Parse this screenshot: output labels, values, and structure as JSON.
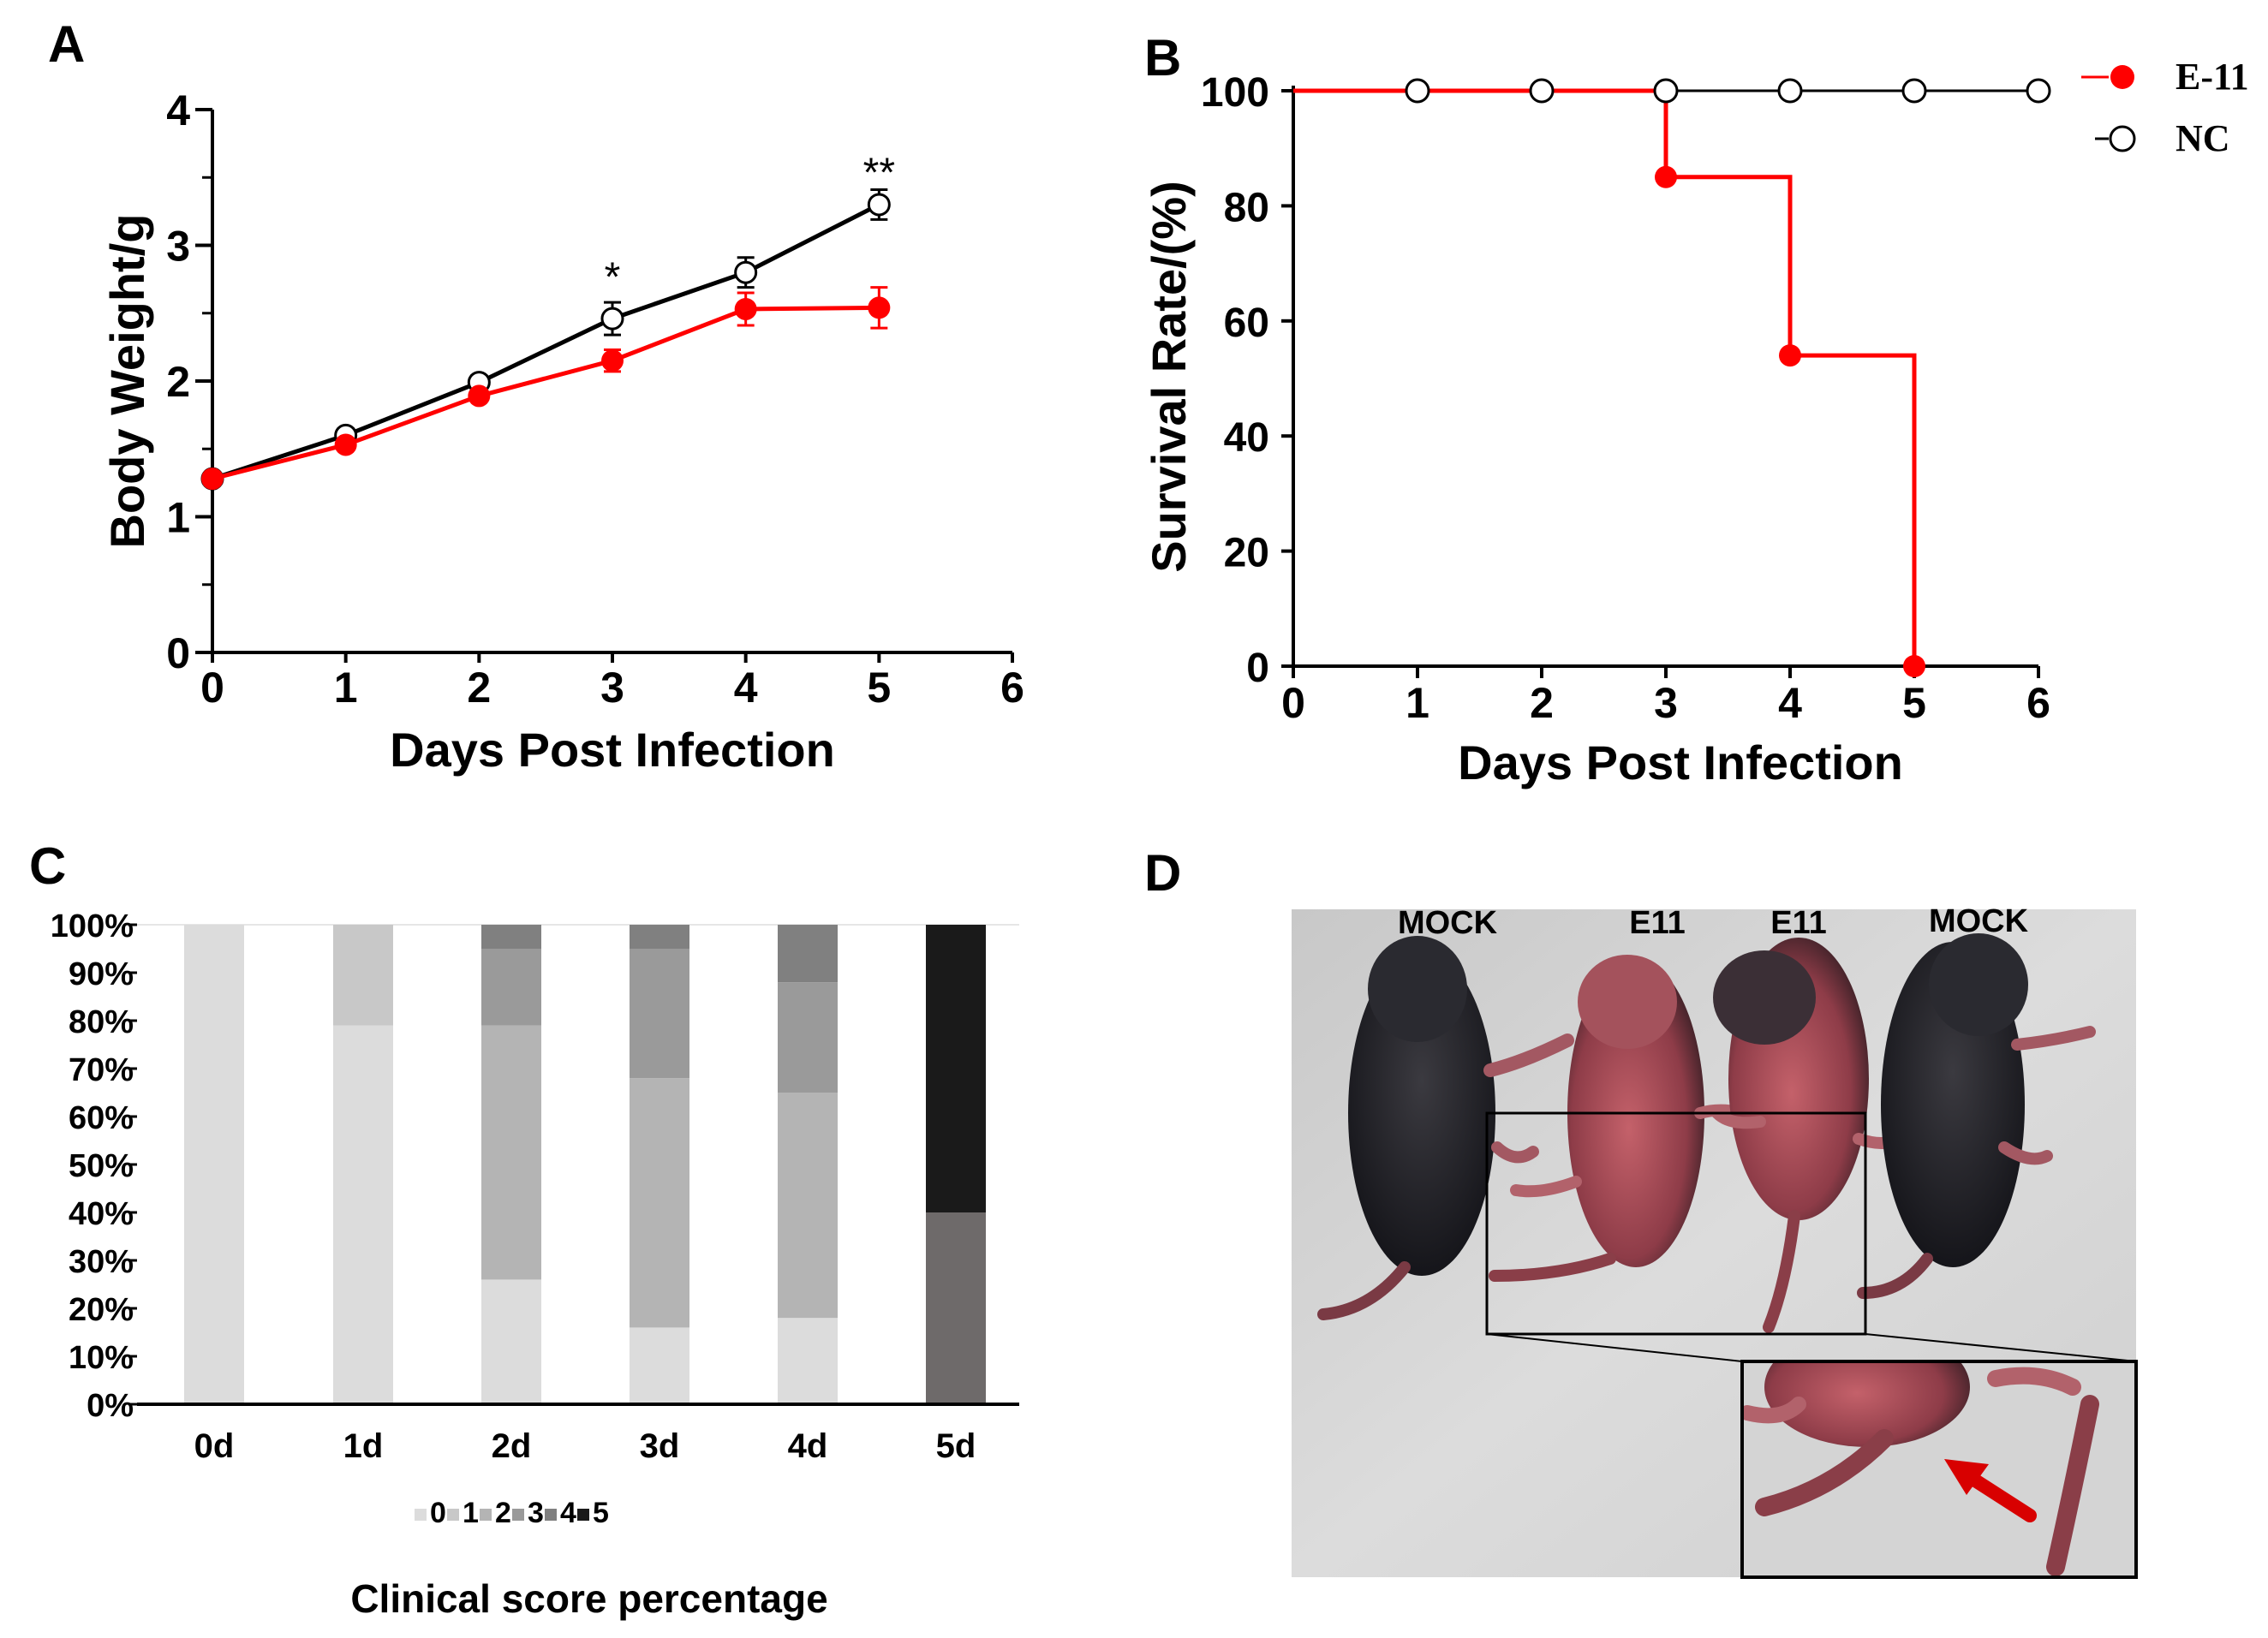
{
  "panels": {
    "A": "A",
    "B": "B",
    "C": "C",
    "D": "D"
  },
  "colors": {
    "e11": "#ff0000",
    "nc": "#000000",
    "score0": "#dcdcdc",
    "score1": "#c8c8c8",
    "score2": "#b4b4b4",
    "score3": "#9a9a9a",
    "score4": "#808080",
    "score5_dark": "#1a1a1a",
    "score4_dark": "#6e6a6a"
  },
  "chart_data": [
    {
      "id": "A",
      "type": "line",
      "title": "",
      "xlabel": "Days Post Infection",
      "ylabel": "Body Weight/g",
      "xlim": [
        0,
        6
      ],
      "ylim": [
        0,
        4
      ],
      "xticks": [
        "0",
        "1",
        "2",
        "3",
        "4",
        "5",
        "6"
      ],
      "yticks": [
        "0",
        "1",
        "2",
        "3",
        "4"
      ],
      "x": [
        0,
        1,
        2,
        3,
        4,
        5
      ],
      "series": [
        {
          "name": "NC",
          "values": [
            1.28,
            1.6,
            1.99,
            2.46,
            2.8,
            3.3
          ],
          "err": [
            0.03,
            0.05,
            0.05,
            0.12,
            0.11,
            0.11
          ],
          "marker": "open-circle"
        },
        {
          "name": "E-11",
          "values": [
            1.28,
            1.53,
            1.89,
            2.15,
            2.53,
            2.54
          ],
          "err": [
            0.03,
            0.04,
            0.04,
            0.08,
            0.12,
            0.15
          ],
          "marker": "filled-circle"
        }
      ],
      "annotations": [
        {
          "x": 3,
          "y": 2.78,
          "text": "*"
        },
        {
          "x": 5,
          "y": 3.55,
          "text": "**"
        }
      ]
    },
    {
      "id": "B",
      "type": "line",
      "title": "",
      "xlabel": "Days Post Infection",
      "ylabel": "Survival Rate/(%)",
      "xlim": [
        0,
        6
      ],
      "ylim": [
        0,
        100
      ],
      "xticks": [
        "0",
        "1",
        "2",
        "3",
        "4",
        "5",
        "6"
      ],
      "yticks": [
        "0",
        "20",
        "40",
        "60",
        "80",
        "100"
      ],
      "step": true,
      "series": [
        {
          "name": "E-11",
          "x": [
            0,
            3,
            3,
            4,
            4,
            5,
            5
          ],
          "values": [
            100,
            100,
            85,
            85,
            54,
            54,
            0
          ],
          "markers_x": [
            3,
            4,
            5
          ],
          "markers_y": [
            85,
            54,
            0
          ],
          "marker": "filled-circle"
        },
        {
          "name": "NC",
          "x": [
            0,
            6
          ],
          "values": [
            100,
            100
          ],
          "markers_x": [
            1,
            2,
            3,
            4,
            5,
            6
          ],
          "markers_y": [
            100,
            100,
            100,
            100,
            100,
            100
          ],
          "marker": "open-circle"
        }
      ],
      "legend": [
        "E-11",
        "NC"
      ]
    },
    {
      "id": "C",
      "type": "bar",
      "stacked": true,
      "title": "Clinical score percentage",
      "xlabel": "",
      "ylabel": "",
      "ylim": [
        0,
        100
      ],
      "yticks": [
        "0%",
        "10%",
        "20%",
        "30%",
        "40%",
        "50%",
        "60%",
        "70%",
        "80%",
        "90%",
        "100%"
      ],
      "categories": [
        "0d",
        "1d",
        "2d",
        "3d",
        "4d",
        "5d"
      ],
      "series": [
        {
          "name": "0",
          "values": [
            100,
            79,
            26,
            16,
            18,
            0
          ]
        },
        {
          "name": "1",
          "values": [
            0,
            21,
            0,
            0,
            0,
            0
          ]
        },
        {
          "name": "2",
          "values": [
            0,
            0,
            53,
            52,
            47,
            0
          ]
        },
        {
          "name": "3",
          "values": [
            0,
            0,
            16,
            27,
            23,
            0
          ]
        },
        {
          "name": "4",
          "values": [
            0,
            0,
            5,
            5,
            12,
            40
          ]
        },
        {
          "name": "5",
          "values": [
            0,
            0,
            0,
            0,
            0,
            60
          ]
        }
      ],
      "legend": [
        "0",
        "1",
        "2",
        "3",
        "4",
        "5"
      ]
    }
  ],
  "photo": {
    "labels": [
      "MOCK",
      "E11",
      "E11",
      "MOCK"
    ]
  }
}
